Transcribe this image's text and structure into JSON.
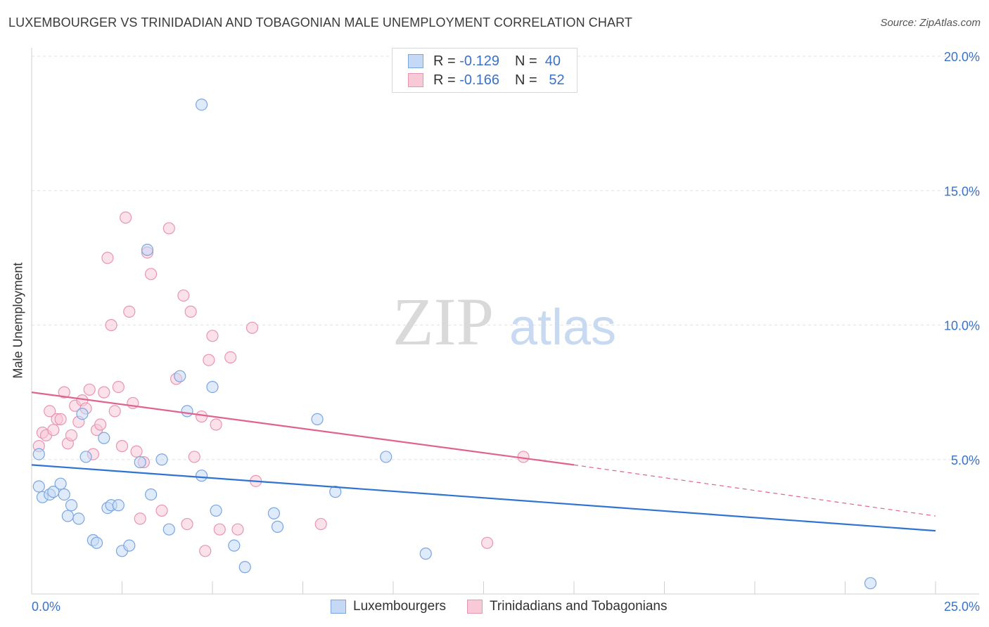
{
  "title": "LUXEMBOURGER VS TRINIDADIAN AND TOBAGONIAN MALE UNEMPLOYMENT CORRELATION CHART",
  "source": "Source: ZipAtlas.com",
  "watermark": {
    "zip": "ZIP",
    "atlas": "atlas"
  },
  "legend_top": {
    "r_label": "R =",
    "n_label": "N =",
    "series": [
      {
        "r": "-0.129",
        "n": "40"
      },
      {
        "r": "-0.166",
        "n": "52"
      }
    ]
  },
  "legend_bottom": [
    "Luxembourgers",
    "Trinidadians and Tobagonians"
  ],
  "colors": {
    "blue_fill": "#c5d9f6",
    "blue_stroke": "#7aa6e0",
    "blue_line": "#2f74d0",
    "pink_fill": "#f8c9d7",
    "pink_stroke": "#e895b2",
    "pink_line": "#e0628f",
    "tick_text": "#3a72c8",
    "grid": "#e2e2e2"
  },
  "chart_data": {
    "type": "scatter",
    "title": "LUXEMBOURGER VS TRINIDADIAN AND TOBAGONIAN MALE UNEMPLOYMENT CORRELATION CHART",
    "xlabel": "",
    "ylabel": "Male Unemployment",
    "xlim": [
      0,
      25
    ],
    "ylim": [
      0,
      20
    ],
    "x_tick_labels": [
      "0.0%",
      "25.0%"
    ],
    "y_ticks": [
      5,
      10,
      15,
      20
    ],
    "y_tick_labels": [
      "5.0%",
      "10.0%",
      "15.0%",
      "20.0%"
    ],
    "grid": true,
    "legend_position": "bottom",
    "series": [
      {
        "name": "Luxembourgers",
        "points": [
          [
            0.2,
            5.2
          ],
          [
            0.2,
            4.0
          ],
          [
            0.3,
            3.6
          ],
          [
            0.5,
            3.7
          ],
          [
            0.6,
            3.8
          ],
          [
            0.8,
            4.1
          ],
          [
            0.9,
            3.7
          ],
          [
            1.0,
            2.9
          ],
          [
            1.1,
            3.3
          ],
          [
            1.3,
            2.8
          ],
          [
            1.4,
            6.7
          ],
          [
            1.5,
            5.1
          ],
          [
            1.7,
            2.0
          ],
          [
            1.8,
            1.9
          ],
          [
            2.0,
            5.8
          ],
          [
            2.1,
            3.2
          ],
          [
            2.2,
            3.3
          ],
          [
            2.4,
            3.3
          ],
          [
            2.5,
            1.6
          ],
          [
            2.7,
            1.8
          ],
          [
            3.0,
            4.9
          ],
          [
            3.2,
            12.8
          ],
          [
            3.3,
            3.7
          ],
          [
            3.6,
            5.0
          ],
          [
            3.8,
            2.4
          ],
          [
            4.1,
            8.1
          ],
          [
            4.3,
            6.8
          ],
          [
            4.7,
            4.4
          ],
          [
            4.7,
            18.2
          ],
          [
            5.0,
            7.7
          ],
          [
            5.1,
            3.1
          ],
          [
            5.6,
            1.8
          ],
          [
            5.9,
            1.0
          ],
          [
            6.7,
            3.0
          ],
          [
            6.8,
            2.5
          ],
          [
            7.9,
            6.5
          ],
          [
            8.4,
            3.8
          ],
          [
            9.8,
            5.1
          ],
          [
            10.9,
            1.5
          ],
          [
            23.2,
            0.4
          ]
        ]
      },
      {
        "name": "Trinidadians and Tobagonians",
        "points": [
          [
            0.2,
            5.5
          ],
          [
            0.3,
            6.0
          ],
          [
            0.4,
            5.9
          ],
          [
            0.5,
            6.8
          ],
          [
            0.6,
            6.1
          ],
          [
            0.7,
            6.5
          ],
          [
            0.8,
            6.5
          ],
          [
            0.9,
            7.5
          ],
          [
            1.0,
            5.6
          ],
          [
            1.1,
            5.9
          ],
          [
            1.2,
            7.0
          ],
          [
            1.3,
            6.4
          ],
          [
            1.4,
            7.2
          ],
          [
            1.5,
            6.9
          ],
          [
            1.6,
            7.6
          ],
          [
            1.7,
            5.2
          ],
          [
            1.8,
            6.1
          ],
          [
            1.9,
            6.3
          ],
          [
            2.0,
            7.5
          ],
          [
            2.1,
            12.5
          ],
          [
            2.2,
            10.0
          ],
          [
            2.3,
            6.8
          ],
          [
            2.4,
            7.7
          ],
          [
            2.5,
            5.5
          ],
          [
            2.6,
            14.0
          ],
          [
            2.7,
            10.5
          ],
          [
            2.8,
            7.1
          ],
          [
            2.9,
            5.3
          ],
          [
            3.0,
            2.8
          ],
          [
            3.1,
            4.9
          ],
          [
            3.2,
            12.7
          ],
          [
            3.3,
            11.9
          ],
          [
            3.6,
            3.1
          ],
          [
            3.8,
            13.6
          ],
          [
            4.0,
            8.0
          ],
          [
            4.2,
            11.1
          ],
          [
            4.3,
            2.6
          ],
          [
            4.4,
            10.5
          ],
          [
            4.5,
            5.1
          ],
          [
            4.7,
            6.6
          ],
          [
            4.8,
            1.6
          ],
          [
            4.9,
            8.7
          ],
          [
            5.0,
            9.6
          ],
          [
            5.1,
            6.3
          ],
          [
            5.2,
            2.4
          ],
          [
            5.5,
            8.8
          ],
          [
            5.7,
            2.4
          ],
          [
            6.1,
            9.9
          ],
          [
            6.2,
            4.2
          ],
          [
            8.0,
            2.6
          ],
          [
            12.6,
            1.9
          ],
          [
            13.6,
            5.1
          ]
        ]
      }
    ],
    "trendlines": [
      {
        "series": "Luxembourgers",
        "from": [
          0,
          4.8
        ],
        "to": [
          25,
          2.35
        ]
      },
      {
        "series": "Trinidadians and Tobagonians",
        "from": [
          0,
          7.5
        ],
        "to": [
          15,
          4.8
        ],
        "dashed_to": [
          25,
          2.9
        ]
      }
    ]
  }
}
